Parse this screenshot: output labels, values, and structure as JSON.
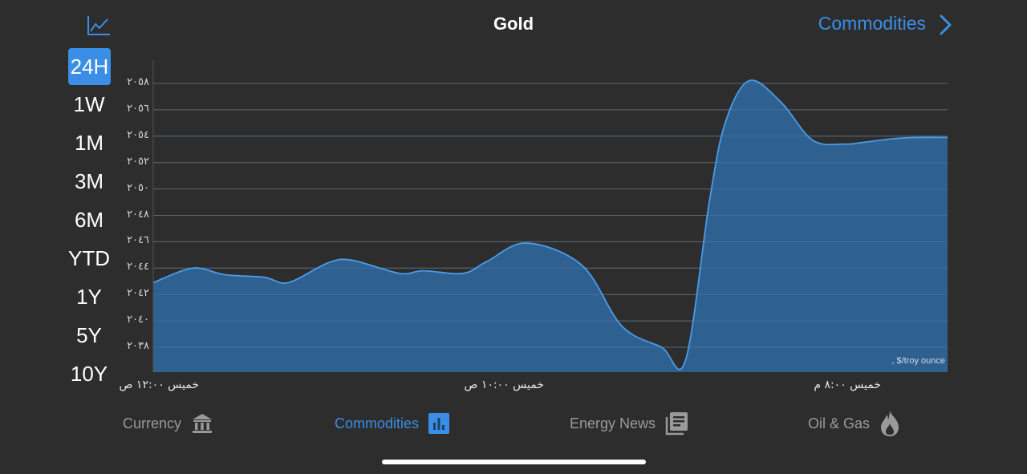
{
  "header": {
    "title": "Gold",
    "nav_link": "Commodities",
    "left_icon": "line-chart-icon",
    "right_icon": "chevron-right-icon"
  },
  "ranges": {
    "items": [
      "24H",
      "1W",
      "1M",
      "3M",
      "6M",
      "YTD",
      "1Y",
      "5Y",
      "10Y"
    ],
    "selected": "24H"
  },
  "chart_data": {
    "type": "area",
    "title": "Gold",
    "unit_label": ", $/troy ounce",
    "xlabel": "",
    "ylabel": "$/troy ounce",
    "ylim": [
      2036.9,
      2060.6
    ],
    "grid": true,
    "y_ticks": [
      2058,
      2056,
      2054,
      2052,
      2050,
      2048,
      2046,
      2044,
      2042,
      2040,
      2038
    ],
    "y_tick_labels": [
      "٢٠٥٨",
      "٢٠٥٦",
      "٢٠٥٤",
      "٢٠٥٢",
      "٢٠٥٠",
      "٢٠٤٨",
      "٢٠٤٦",
      "٢٠٤٤",
      "٢٠٤٢",
      "٢٠٤٠",
      "٢٠٣٨"
    ],
    "x_tick_labels": [
      "خميس ١٢:٠٠ ص",
      "خميس ١٠:٠٠ ص",
      "خميس ٨:٠٠ م"
    ],
    "x_tick_positions": [
      0.0,
      0.42,
      0.87
    ],
    "series": [
      {
        "name": "Gold",
        "color": "#4a9be8",
        "fill": "#2f6496",
        "x": [
          0.0,
          0.05,
          0.09,
          0.14,
          0.17,
          0.22,
          0.25,
          0.31,
          0.34,
          0.39,
          0.42,
          0.47,
          0.54,
          0.59,
          0.64,
          0.67,
          0.7,
          0.72,
          0.75,
          0.79,
          0.83,
          0.87,
          0.89,
          0.93,
          0.96,
          1.0
        ],
        "values": [
          2042.9,
          2044.0,
          2043.5,
          2043.3,
          2042.9,
          2044.4,
          2044.6,
          2043.6,
          2043.8,
          2043.6,
          2044.5,
          2045.9,
          2044.2,
          2039.6,
          2038.0,
          2037.0,
          2049.0,
          2055.0,
          2058.2,
          2056.6,
          2053.7,
          2053.4,
          2053.5,
          2053.8,
          2053.9,
          2053.9
        ]
      }
    ]
  },
  "tabs": [
    {
      "label": "Currency",
      "icon": "bank-icon",
      "active": false
    },
    {
      "label": "Commodities",
      "icon": "bar-chart-icon",
      "active": true
    },
    {
      "label": "Energy News",
      "icon": "newspaper-icon",
      "active": false
    },
    {
      "label": "Oil & Gas",
      "icon": "flame-icon",
      "active": false
    }
  ],
  "colors": {
    "background": "#2d2d2d",
    "accent": "#3a8ee6",
    "area_fill": "#2f6496",
    "line": "#4a9be8",
    "grid": "#5a5a5a",
    "inactive_tab": "#9a9a9a"
  }
}
